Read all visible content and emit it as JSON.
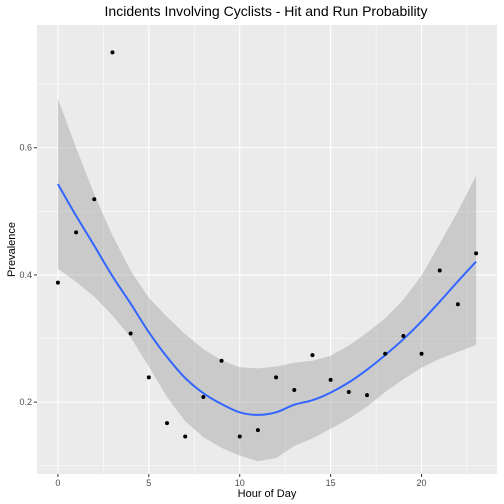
{
  "chart_data": {
    "type": "scatter",
    "title": "Incidents Involving Cyclists - Hit and Run Probability",
    "xlabel": "Hour of Day",
    "ylabel": "Prevalence",
    "xlim": [
      -1.15,
      24.15
    ],
    "ylim": [
      0.087,
      0.793
    ],
    "x_ticks": [
      0,
      5,
      10,
      15,
      20
    ],
    "y_ticks": [
      0.2,
      0.4,
      0.6
    ],
    "y_tick_labels": [
      "0.2",
      "0.4",
      "0.6"
    ],
    "grid": true,
    "panel_color": "#ebebeb",
    "smooth_color": "#3366ff",
    "ribbon_color": "#999999",
    "points": [
      {
        "x": 0,
        "y": 0.388
      },
      {
        "x": 1,
        "y": 0.467
      },
      {
        "x": 2,
        "y": 0.519
      },
      {
        "x": 3,
        "y": 0.75
      },
      {
        "x": 4,
        "y": 0.308
      },
      {
        "x": 5,
        "y": 0.239
      },
      {
        "x": 6,
        "y": 0.167
      },
      {
        "x": 7,
        "y": 0.146
      },
      {
        "x": 8,
        "y": 0.208
      },
      {
        "x": 9,
        "y": 0.265
      },
      {
        "x": 10,
        "y": 0.146
      },
      {
        "x": 11,
        "y": 0.156
      },
      {
        "x": 12,
        "y": 0.239
      },
      {
        "x": 13,
        "y": 0.219
      },
      {
        "x": 14,
        "y": 0.274
      },
      {
        "x": 15,
        "y": 0.235
      },
      {
        "x": 16,
        "y": 0.216
      },
      {
        "x": 17,
        "y": 0.211
      },
      {
        "x": 18,
        "y": 0.276
      },
      {
        "x": 19,
        "y": 0.304
      },
      {
        "x": 20,
        "y": 0.276
      },
      {
        "x": 21,
        "y": 0.407
      },
      {
        "x": 22,
        "y": 0.354
      },
      {
        "x": 23,
        "y": 0.434
      }
    ],
    "smooth": [
      {
        "x": 0,
        "y": 0.543,
        "lo": 0.41,
        "hi": 0.677
      },
      {
        "x": 1,
        "y": 0.493,
        "lo": 0.389,
        "hi": 0.6
      },
      {
        "x": 2,
        "y": 0.446,
        "lo": 0.366,
        "hi": 0.527
      },
      {
        "x": 3,
        "y": 0.398,
        "lo": 0.336,
        "hi": 0.462
      },
      {
        "x": 4,
        "y": 0.355,
        "lo": 0.302,
        "hi": 0.407
      },
      {
        "x": 5,
        "y": 0.31,
        "lo": 0.256,
        "hi": 0.364
      },
      {
        "x": 6,
        "y": 0.271,
        "lo": 0.208,
        "hi": 0.334
      },
      {
        "x": 7,
        "y": 0.238,
        "lo": 0.17,
        "hi": 0.307
      },
      {
        "x": 8,
        "y": 0.214,
        "lo": 0.145,
        "hi": 0.283
      },
      {
        "x": 9,
        "y": 0.197,
        "lo": 0.128,
        "hi": 0.266
      },
      {
        "x": 10,
        "y": 0.184,
        "lo": 0.116,
        "hi": 0.255
      },
      {
        "x": 11,
        "y": 0.18,
        "lo": 0.107,
        "hi": 0.253
      },
      {
        "x": 12,
        "y": 0.184,
        "lo": 0.112,
        "hi": 0.256
      },
      {
        "x": 13,
        "y": 0.196,
        "lo": 0.131,
        "hi": 0.262
      },
      {
        "x": 14,
        "y": 0.203,
        "lo": 0.143,
        "hi": 0.265
      },
      {
        "x": 15,
        "y": 0.215,
        "lo": 0.158,
        "hi": 0.273
      },
      {
        "x": 16,
        "y": 0.231,
        "lo": 0.174,
        "hi": 0.289
      },
      {
        "x": 17,
        "y": 0.251,
        "lo": 0.193,
        "hi": 0.309
      },
      {
        "x": 18,
        "y": 0.274,
        "lo": 0.216,
        "hi": 0.332
      },
      {
        "x": 19,
        "y": 0.299,
        "lo": 0.236,
        "hi": 0.361
      },
      {
        "x": 20,
        "y": 0.327,
        "lo": 0.254,
        "hi": 0.399
      },
      {
        "x": 21,
        "y": 0.358,
        "lo": 0.268,
        "hi": 0.449
      },
      {
        "x": 22,
        "y": 0.39,
        "lo": 0.279,
        "hi": 0.5
      },
      {
        "x": 23,
        "y": 0.421,
        "lo": 0.29,
        "hi": 0.556
      }
    ]
  }
}
